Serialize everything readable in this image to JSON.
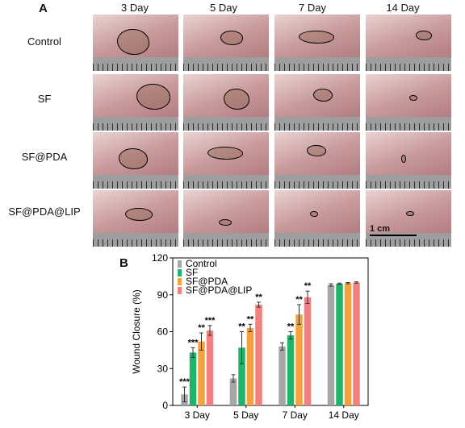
{
  "panel_a": {
    "label": "A",
    "columns": [
      "3 Day",
      "5 Day",
      "7 Day",
      "14 Day"
    ],
    "rows": [
      "Control",
      "SF",
      "SF@PDA",
      "SF@PDA@LIP"
    ],
    "scale_label": "1 cm"
  },
  "panel_b": {
    "label": "B"
  },
  "chart_data": {
    "type": "bar",
    "categories": [
      "3 Day",
      "5 Day",
      "7 Day",
      "14 Day"
    ],
    "ylabel": "Wound Closure (%)",
    "ylim": [
      0,
      120
    ],
    "yticks": [
      0,
      30,
      60,
      90,
      120
    ],
    "legend_position": "top-left",
    "series": [
      {
        "name": "Control",
        "color": "#a6a6a6",
        "values": [
          9,
          22,
          48,
          98
        ],
        "errors": [
          6,
          3,
          3,
          1
        ],
        "sig": [
          "***",
          "",
          "",
          ""
        ]
      },
      {
        "name": "SF",
        "color": "#22b36b",
        "values": [
          43,
          47,
          57,
          99
        ],
        "errors": [
          4,
          13,
          3,
          0.5
        ],
        "sig": [
          "***",
          "**",
          "**",
          ""
        ]
      },
      {
        "name": "SF@PDA",
        "color": "#f5a23c",
        "values": [
          52,
          63,
          74,
          99.5
        ],
        "errors": [
          7,
          3,
          8,
          0.5
        ],
        "sig": [
          "**",
          "**",
          "**",
          ""
        ]
      },
      {
        "name": "SF@PDA@LIP",
        "color": "#f47f7f",
        "values": [
          61,
          82,
          88,
          100
        ],
        "errors": [
          4,
          2,
          5,
          0.5
        ],
        "sig": [
          "***",
          "**",
          "**",
          ""
        ]
      }
    ]
  }
}
